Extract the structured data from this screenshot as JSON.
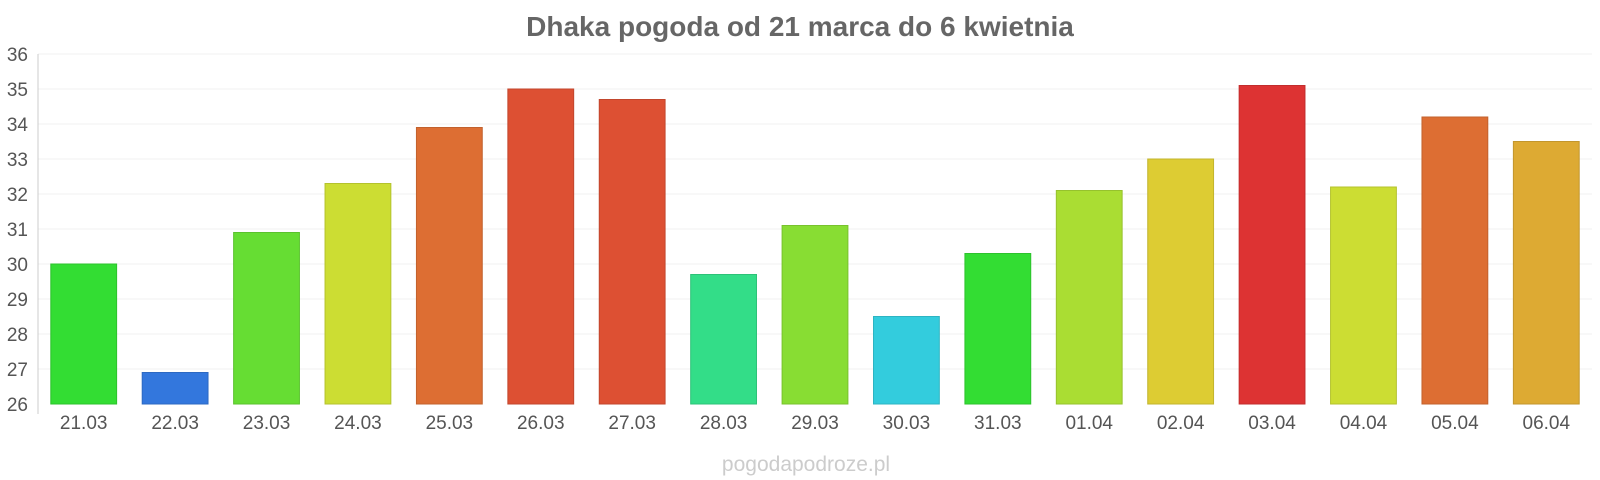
{
  "chart_data": {
    "type": "bar",
    "title": "Dhaka pogoda od 21 marca do 6 kwietnia",
    "xlabel": "",
    "ylabel": "",
    "ylim": [
      26,
      36
    ],
    "yticks": [
      "26",
      "27",
      "28",
      "29",
      "30",
      "31",
      "32",
      "33",
      "34",
      "35",
      "36"
    ],
    "grid": true,
    "categories": [
      "21.03",
      "22.03",
      "23.03",
      "24.03",
      "25.03",
      "26.03",
      "27.03",
      "28.03",
      "29.03",
      "30.03",
      "31.03",
      "01.04",
      "02.04",
      "03.04",
      "04.04",
      "05.04",
      "06.04"
    ],
    "values": [
      30.0,
      26.9,
      30.9,
      32.3,
      33.9,
      35.0,
      34.7,
      29.7,
      31.1,
      28.5,
      30.3,
      32.1,
      33.0,
      35.1,
      32.2,
      34.2,
      33.5
    ],
    "colors": [
      "#33dd33",
      "#3377dd",
      "#66dd33",
      "#ccdd33",
      "#dd6e33",
      "#dd5033",
      "#dd5033",
      "#33dd88",
      "#88dd33",
      "#33ccdd",
      "#33dd33",
      "#aadd33",
      "#ddcc33",
      "#dd3333",
      "#ccdd33",
      "#dd6e33",
      "#ddaa33"
    ]
  },
  "footer": {
    "watermark": "pogodapodroze.pl"
  }
}
